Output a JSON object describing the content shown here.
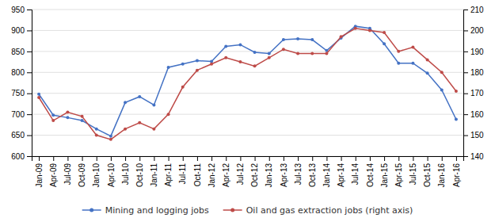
{
  "chart_data": {
    "type": "line",
    "categories": [
      "Jan-09",
      "Apr-09",
      "Jul-09",
      "Oct-09",
      "Jan-10",
      "Apr-10",
      "Jul-10",
      "Oct-10",
      "Jan-11",
      "Apr-11",
      "Jul-11",
      "Oct-11",
      "Jan-12",
      "Apr-12",
      "Jul-12",
      "Oct-12",
      "Jan-13",
      "Apr-13",
      "Jul-13",
      "Oct-13",
      "Jan-14",
      "Apr-14",
      "Jul-14",
      "Oct-14",
      "Jan-15",
      "Apr-15",
      "Jul-15",
      "Oct-15",
      "Jan-16",
      "Apr-16"
    ],
    "series": [
      {
        "name": "Mining and logging jobs",
        "color": "#4472C4",
        "marker": "circle",
        "values": [
          748,
          698,
          692,
          685,
          665,
          648,
          728,
          742,
          722,
          812,
          820,
          828,
          826,
          862,
          866,
          848,
          845,
          878,
          880,
          878,
          852,
          882,
          910,
          905,
          868,
          822,
          822,
          798,
          758,
          688
        ]
      },
      {
        "name": "Oil and gas extraction jobs (right axis)",
        "color": "#BE4B48",
        "marker": "circle",
        "axis": "y2",
        "values": [
          168,
          157,
          161,
          159,
          150,
          148,
          153,
          156,
          153,
          160,
          173,
          181,
          184,
          187,
          185,
          183,
          187,
          191,
          189,
          189,
          189,
          197,
          201,
          200,
          199,
          190,
          192,
          186,
          180,
          171
        ]
      }
    ],
    "ylim": [
      600,
      950
    ],
    "yticks": [
      600,
      650,
      700,
      750,
      800,
      850,
      900,
      950
    ],
    "y2lim": [
      140,
      210
    ],
    "y2ticks": [
      140,
      150,
      160,
      170,
      180,
      190,
      200,
      210
    ],
    "grid": true,
    "legend": "bottom"
  }
}
